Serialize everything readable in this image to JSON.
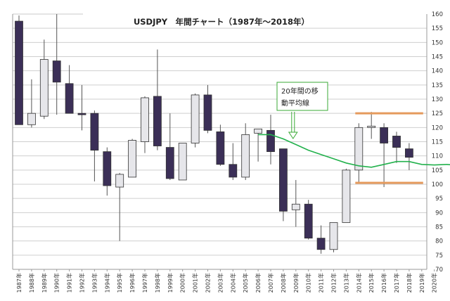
{
  "chart_data": {
    "type": "candlestick",
    "title": "USDJPY　年間チャート（1987年～2018年）",
    "ylim": [
      70,
      160
    ],
    "yticks": [
      70,
      75,
      80,
      85,
      90,
      95,
      100,
      105,
      110,
      115,
      120,
      125,
      130,
      135,
      140,
      145,
      150,
      155,
      160
    ],
    "grid": true,
    "categories": [
      "1987年",
      "1988年",
      "1989年",
      "1990年",
      "1991年",
      "1992年",
      "1993年",
      "1994年",
      "1995年",
      "1996年",
      "1997年",
      "1998年",
      "1999年",
      "2000年",
      "2001年",
      "2002年",
      "2003年",
      "2004年",
      "2005年",
      "2006年",
      "2007年",
      "2008年",
      "2009年",
      "2010年",
      "2011年",
      "2012年",
      "2013年",
      "2014年",
      "2015年",
      "2016年",
      "2017年",
      "2018年",
      "2019年",
      "2020年"
    ],
    "candles": [
      {
        "open": 157.5,
        "high": 159.5,
        "low": 121.0,
        "close": 121.0
      },
      {
        "open": 121.0,
        "high": 137.0,
        "low": 120.0,
        "close": 125.0
      },
      {
        "open": 124.0,
        "high": 151.0,
        "low": 123.0,
        "close": 144.0
      },
      {
        "open": 143.5,
        "high": 160.0,
        "low": 124.5,
        "close": 136.0
      },
      {
        "open": 135.5,
        "high": 142.0,
        "low": 125.0,
        "close": 125.0
      },
      {
        "open": 125.0,
        "high": 135.0,
        "low": 119.0,
        "close": 124.5
      },
      {
        "open": 125.0,
        "high": 126.0,
        "low": 101.0,
        "close": 112.0
      },
      {
        "open": 111.5,
        "high": 113.0,
        "low": 96.0,
        "close": 99.5
      },
      {
        "open": 99.0,
        "high": 104.0,
        "low": 80.0,
        "close": 103.5
      },
      {
        "open": 102.5,
        "high": 116.0,
        "low": 102.5,
        "close": 115.5
      },
      {
        "open": 115.0,
        "high": 131.0,
        "low": 111.0,
        "close": 130.5
      },
      {
        "open": 131.0,
        "high": 147.5,
        "low": 112.0,
        "close": 113.5
      },
      {
        "open": 113.0,
        "high": 125.0,
        "low": 101.5,
        "close": 102.0
      },
      {
        "open": 101.5,
        "high": 114.5,
        "low": 101.5,
        "close": 114.5
      },
      {
        "open": 114.5,
        "high": 132.0,
        "low": 113.0,
        "close": 131.5
      },
      {
        "open": 131.5,
        "high": 135.0,
        "low": 118.0,
        "close": 119.0
      },
      {
        "open": 118.5,
        "high": 121.0,
        "low": 106.5,
        "close": 107.0
      },
      {
        "open": 107.0,
        "high": 114.5,
        "low": 101.5,
        "close": 102.5
      },
      {
        "open": 102.5,
        "high": 121.5,
        "low": 101.5,
        "close": 117.5
      },
      {
        "open": 118.0,
        "high": 119.5,
        "low": 108.0,
        "close": 119.5
      },
      {
        "open": 119.0,
        "high": 124.5,
        "low": 107.0,
        "close": 111.5
      },
      {
        "open": 112.5,
        "high": 112.5,
        "low": 87.0,
        "close": 90.5
      },
      {
        "open": 91.0,
        "high": 101.5,
        "low": 85.0,
        "close": 93.0
      },
      {
        "open": 93.0,
        "high": 94.5,
        "low": 80.5,
        "close": 81.0
      },
      {
        "open": 81.0,
        "high": 85.5,
        "low": 75.5,
        "close": 77.0
      },
      {
        "open": 77.0,
        "high": 86.5,
        "low": 76.0,
        "close": 86.5
      },
      {
        "open": 86.5,
        "high": 105.5,
        "low": 86.5,
        "close": 105.0
      },
      {
        "open": 105.0,
        "high": 121.5,
        "low": 100.5,
        "close": 120.0
      },
      {
        "open": 120.0,
        "high": 125.5,
        "low": 116.0,
        "close": 120.5
      },
      {
        "open": 120.0,
        "high": 121.5,
        "low": 99.0,
        "close": 114.5
      },
      {
        "open": 117.0,
        "high": 118.5,
        "low": 107.5,
        "close": 113.0
      },
      {
        "open": 112.5,
        "high": 114.5,
        "low": 105.0,
        "close": 109.5
      }
    ],
    "moving_average": {
      "x_start": "2006年",
      "values": [
        117.5,
        117.5,
        116.0,
        114.0,
        112.0,
        110.5,
        109.0,
        107.5,
        106.5,
        106.0,
        107.0,
        108.0,
        108.0,
        107.0,
        106.8,
        107.0,
        106.6
      ]
    },
    "annotation": {
      "lines": [
        "20年間の移",
        "動平均線"
      ],
      "target": "2009年"
    },
    "reference_lines": [
      {
        "value": 125.0,
        "from": "2014年",
        "to": "2019年",
        "color": "#e59a5c"
      },
      {
        "value": 100.5,
        "from": "2014年",
        "to": "2019年",
        "color": "#e59a5c"
      }
    ],
    "colors": {
      "bear": "#3b2f57",
      "bull": "#e6e6ea",
      "candle_edge": "#333333",
      "wick": "#555555",
      "ma": "#22b14c",
      "grid": "#cfcfcf",
      "annotation_border": "#3aaa35",
      "reference": "#e59a5c"
    }
  }
}
